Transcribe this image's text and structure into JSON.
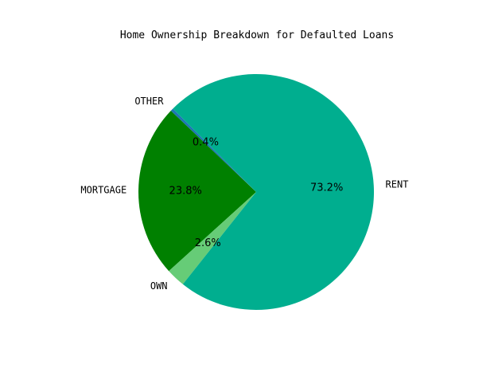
{
  "chart_data": {
    "type": "pie",
    "title": "Home Ownership Breakdown for Defaulted Loans",
    "start_angle_deg": 135,
    "direction": "counterclockwise",
    "slices": [
      {
        "label": "OTHER",
        "value": 0.4,
        "pct_label": "0.4%",
        "color": "#1F77B4"
      },
      {
        "label": "MORTGAGE",
        "value": 23.8,
        "pct_label": "23.8%",
        "color": "#008000"
      },
      {
        "label": "OWN",
        "value": 2.6,
        "pct_label": "2.6%",
        "color": "#66CC77"
      },
      {
        "label": "RENT",
        "value": 73.2,
        "pct_label": "73.2%",
        "color": "#00AE8F"
      }
    ]
  }
}
